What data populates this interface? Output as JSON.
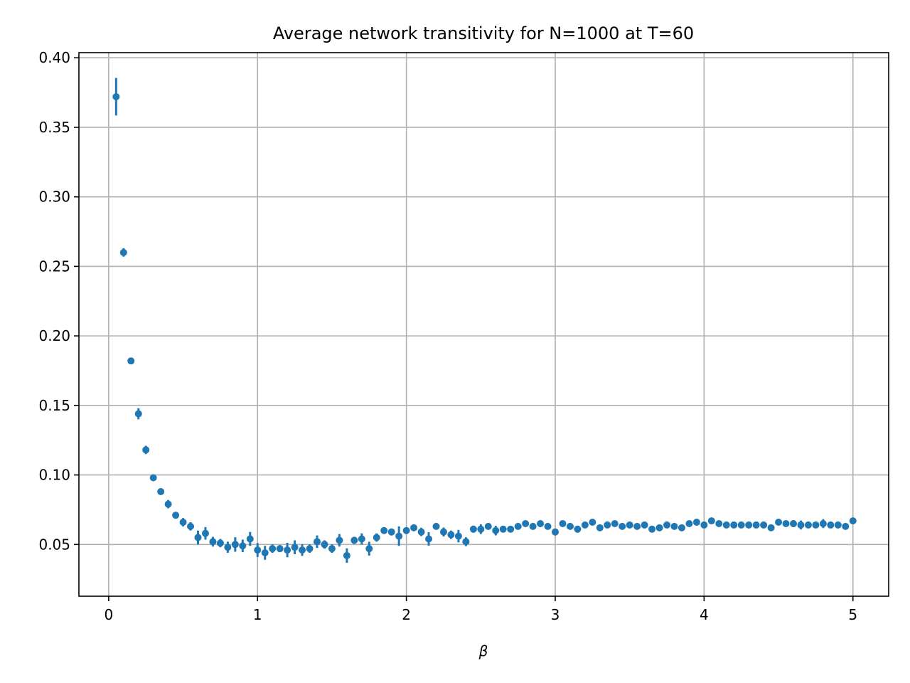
{
  "chart_data": {
    "type": "scatter",
    "title": "Average network transitivity for N=1000 at T=60",
    "xlabel": "β",
    "ylabel": "",
    "xlim": [
      -0.2,
      5.24
    ],
    "ylim": [
      0.0128,
      0.4037
    ],
    "xticks": [
      0,
      1,
      2,
      3,
      4,
      5
    ],
    "xtick_labels": [
      "0",
      "1",
      "2",
      "3",
      "4",
      "5"
    ],
    "yticks": [
      0.05,
      0.1,
      0.15,
      0.2,
      0.25,
      0.3,
      0.35,
      0.4
    ],
    "ytick_labels": [
      "0.05",
      "0.10",
      "0.15",
      "0.20",
      "0.25",
      "0.30",
      "0.35",
      "0.40"
    ],
    "grid": true,
    "color": "#1f77b4",
    "x": [
      0.05,
      0.1,
      0.15,
      0.2,
      0.25,
      0.3,
      0.35,
      0.4,
      0.45,
      0.5,
      0.55,
      0.6,
      0.65,
      0.7,
      0.75,
      0.8,
      0.85,
      0.9,
      0.95,
      1.0,
      1.05,
      1.1,
      1.15,
      1.2,
      1.25,
      1.3,
      1.35,
      1.4,
      1.45,
      1.5,
      1.55,
      1.6,
      1.65,
      1.7,
      1.75,
      1.8,
      1.85,
      1.9,
      1.95,
      2.0,
      2.05,
      2.1,
      2.15,
      2.2,
      2.25,
      2.3,
      2.35,
      2.4,
      2.45,
      2.5,
      2.55,
      2.6,
      2.65,
      2.7,
      2.75,
      2.8,
      2.85,
      2.9,
      2.95,
      3.0,
      3.05,
      3.1,
      3.15,
      3.2,
      3.25,
      3.3,
      3.35,
      3.4,
      3.45,
      3.5,
      3.55,
      3.6,
      3.65,
      3.7,
      3.75,
      3.8,
      3.85,
      3.9,
      3.95,
      4.0,
      4.05,
      4.1,
      4.15,
      4.2,
      4.25,
      4.3,
      4.35,
      4.4,
      4.45,
      4.5,
      4.55,
      4.6,
      4.65,
      4.7,
      4.75,
      4.8,
      4.85,
      4.9,
      4.95,
      5.0
    ],
    "y": [
      0.372,
      0.26,
      0.182,
      0.144,
      0.118,
      0.098,
      0.088,
      0.079,
      0.071,
      0.066,
      0.063,
      0.055,
      0.058,
      0.052,
      0.051,
      0.048,
      0.05,
      0.049,
      0.054,
      0.046,
      0.044,
      0.047,
      0.047,
      0.046,
      0.048,
      0.046,
      0.047,
      0.052,
      0.05,
      0.047,
      0.053,
      0.042,
      0.053,
      0.054,
      0.047,
      0.055,
      0.06,
      0.059,
      0.056,
      0.06,
      0.062,
      0.059,
      0.054,
      0.063,
      0.059,
      0.057,
      0.056,
      0.052,
      0.061,
      0.061,
      0.063,
      0.06,
      0.061,
      0.061,
      0.063,
      0.065,
      0.063,
      0.065,
      0.063,
      0.059,
      0.065,
      0.063,
      0.061,
      0.064,
      0.066,
      0.062,
      0.064,
      0.065,
      0.063,
      0.064,
      0.063,
      0.064,
      0.061,
      0.062,
      0.064,
      0.063,
      0.062,
      0.065,
      0.066,
      0.064,
      0.067,
      0.065,
      0.064,
      0.064,
      0.064,
      0.064,
      0.064,
      0.064,
      0.062,
      0.066,
      0.065,
      0.065,
      0.064,
      0.064,
      0.064,
      0.065,
      0.064,
      0.064,
      0.063,
      0.067
    ],
    "yerr": [
      0.0135,
      0.003,
      0.002,
      0.004,
      0.003,
      0.0015,
      0.0015,
      0.003,
      0.0012,
      0.003,
      0.003,
      0.005,
      0.0045,
      0.0035,
      0.003,
      0.004,
      0.0052,
      0.0045,
      0.005,
      0.005,
      0.005,
      0.003,
      0.0025,
      0.0052,
      0.005,
      0.0042,
      0.003,
      0.0045,
      0.003,
      0.003,
      0.0045,
      0.0052,
      0.0025,
      0.004,
      0.005,
      0.003,
      0.002,
      0.0025,
      0.007,
      0.002,
      0.0015,
      0.003,
      0.0048,
      0.0013,
      0.0032,
      0.003,
      0.0045,
      0.0032,
      0.0025,
      0.0035,
      0.0015,
      0.0035,
      0.0013,
      0.0013,
      0.0022,
      0.0013,
      0.0013,
      0.0013,
      0.0013,
      0.0025,
      0.0018,
      0.0022,
      0.0025,
      0.0013,
      0.0013,
      0.0013,
      0.0013,
      0.0013,
      0.0013,
      0.0013,
      0.0013,
      0.0013,
      0.0013,
      0.0013,
      0.0013,
      0.0013,
      0.0013,
      0.0015,
      0.0013,
      0.0013,
      0.0013,
      0.0013,
      0.0013,
      0.0013,
      0.0013,
      0.0013,
      0.0013,
      0.0022,
      0.0013,
      0.0013,
      0.0013,
      0.0025,
      0.0032,
      0.0022,
      0.0022,
      0.0032,
      0.0013,
      0.0022,
      0.0013,
      0.0013
    ]
  }
}
